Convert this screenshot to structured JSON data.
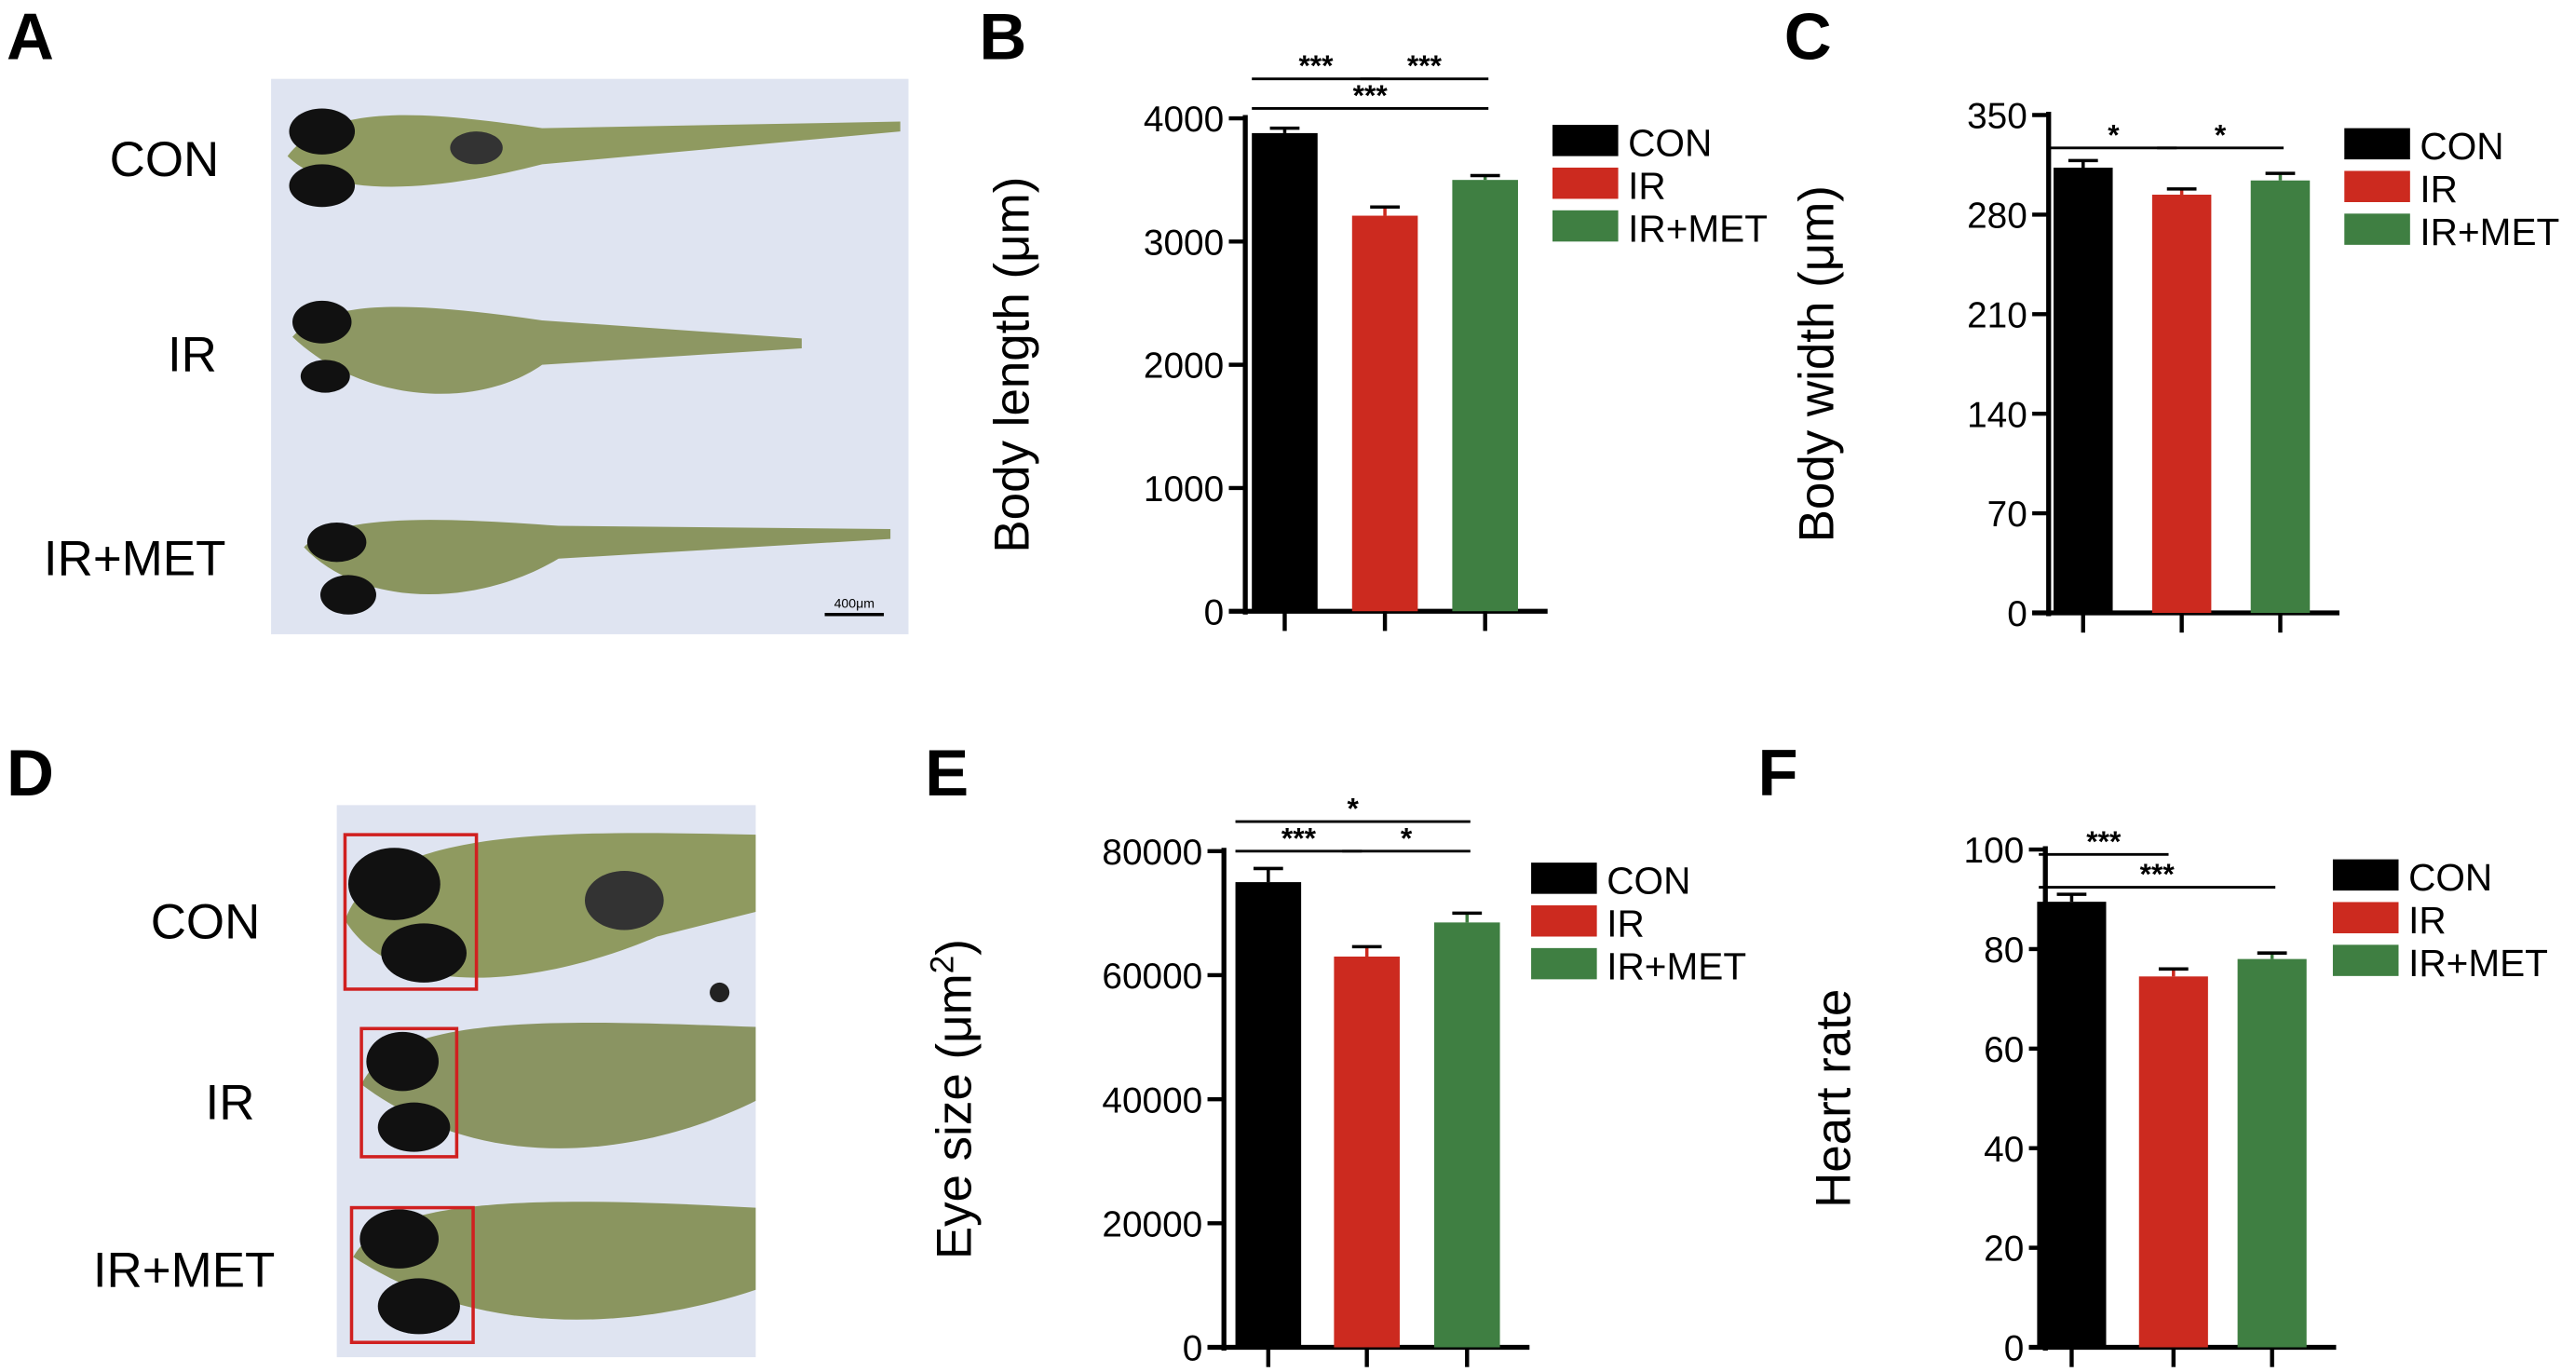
{
  "panels": {
    "A": {
      "letter": "A",
      "labels": [
        "CON",
        "IR",
        "IR+MET"
      ],
      "scale_bar": "400μm"
    },
    "D": {
      "letter": "D",
      "labels": [
        "CON",
        "IR",
        "IR+MET"
      ]
    }
  },
  "colors": {
    "CON": "#000000",
    "IR": "#cc2a1f",
    "IR+MET": "#3f7f42",
    "photo_bg": "#dfe4f1",
    "eye_box": "#d02020"
  },
  "chart_data": [
    {
      "id": "B",
      "letter": "B",
      "type": "bar",
      "ylabel": "Body length (μm)",
      "ylim": [
        0,
        4000
      ],
      "yticks": [
        0,
        1000,
        2000,
        3000,
        4000
      ],
      "categories": [
        "CON",
        "IR",
        "IR+MET"
      ],
      "values": [
        3880,
        3210,
        3500
      ],
      "errors": [
        40,
        70,
        35
      ],
      "legend": [
        "CON",
        "IR",
        "IR+MET"
      ],
      "legend_position": "right",
      "significance": [
        {
          "from": 0,
          "to": 1,
          "label": "***"
        },
        {
          "from": 1,
          "to": 2,
          "label": "***"
        },
        {
          "from": 0,
          "to": 2,
          "label": "***"
        }
      ]
    },
    {
      "id": "C",
      "letter": "C",
      "type": "bar",
      "ylabel": "Body width (μm)",
      "ylim": [
        0,
        350
      ],
      "yticks": [
        0,
        70,
        140,
        210,
        280,
        350
      ],
      "categories": [
        "CON",
        "IR",
        "IR+MET"
      ],
      "values": [
        313,
        294,
        304
      ],
      "errors": [
        5,
        4,
        5
      ],
      "legend": [
        "CON",
        "IR",
        "IR+MET"
      ],
      "legend_position": "right",
      "significance": [
        {
          "from": 0,
          "to": 1,
          "label": "*"
        },
        {
          "from": 1,
          "to": 2,
          "label": "*"
        }
      ]
    },
    {
      "id": "E",
      "letter": "E",
      "type": "bar",
      "ylabel": "Eye size (μm²)",
      "ylim": [
        0,
        80000
      ],
      "yticks": [
        0,
        20000,
        40000,
        60000,
        80000
      ],
      "categories": [
        "CON",
        "IR",
        "IR+MET"
      ],
      "values": [
        75000,
        63000,
        68500
      ],
      "errors": [
        2200,
        1600,
        1500
      ],
      "legend": [
        "CON",
        "IR",
        "IR+MET"
      ],
      "legend_position": "right",
      "significance": [
        {
          "from": 0,
          "to": 1,
          "label": "***"
        },
        {
          "from": 1,
          "to": 2,
          "label": "*"
        },
        {
          "from": 0,
          "to": 2,
          "label": "*"
        }
      ]
    },
    {
      "id": "F",
      "letter": "F",
      "type": "bar",
      "ylabel": "Heart rate",
      "ylim": [
        0,
        100
      ],
      "yticks": [
        0,
        20,
        40,
        60,
        80,
        100
      ],
      "categories": [
        "CON",
        "IR",
        "IR+MET"
      ],
      "values": [
        89.5,
        74.5,
        78
      ],
      "errors": [
        1.5,
        1.5,
        1.2
      ],
      "legend": [
        "CON",
        "IR",
        "IR+MET"
      ],
      "legend_position": "right",
      "significance": [
        {
          "from": 0,
          "to": 1,
          "label": "***"
        },
        {
          "from": 0,
          "to": 2,
          "label": "***"
        }
      ]
    }
  ]
}
